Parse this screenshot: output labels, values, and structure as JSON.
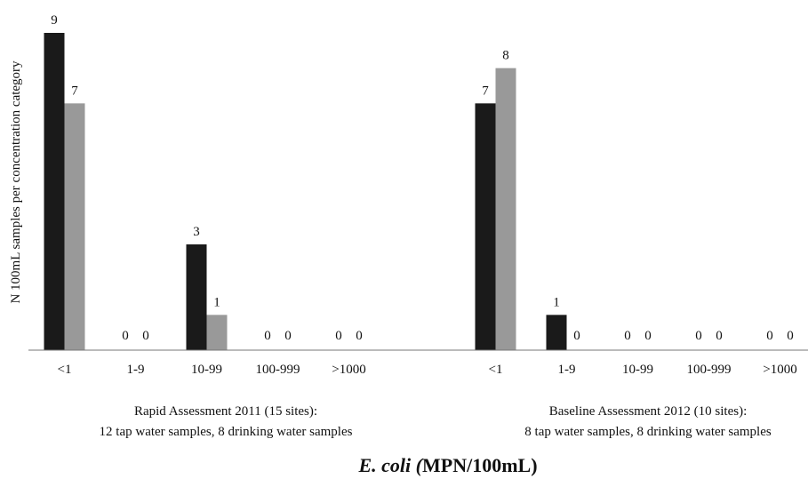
{
  "chart_data": {
    "type": "bar",
    "ylabel": "N 100mL samples per concentration category",
    "xlabel_italic": "E. coli (",
    "xlabel_rest": "MPN/100mL)",
    "ylim": [
      0,
      9
    ],
    "grid": false,
    "series_colors": [
      "#1a1a1a",
      "#999999"
    ],
    "groups": [
      {
        "label_line1": "Rapid Assessment 2011 (15 sites):",
        "label_line2": "12 tap water samples, 8 drinking water samples",
        "categories": [
          "<1",
          "1-9",
          "10-99",
          "100-999",
          ">1000"
        ],
        "series": [
          {
            "values": [
              9,
              0,
              3,
              0,
              0
            ]
          },
          {
            "values": [
              7,
              0,
              1,
              0,
              0
            ]
          }
        ]
      },
      {
        "label_line1": "Baseline Assessment 2012 (10 sites):",
        "label_line2": "8 tap water samples, 8 drinking water samples",
        "categories": [
          "<1",
          "1-9",
          "10-99",
          "100-999",
          ">1000"
        ],
        "series": [
          {
            "values": [
              7,
              1,
              0,
              0,
              0
            ]
          },
          {
            "values": [
              8,
              0,
              0,
              0,
              0
            ]
          }
        ]
      }
    ]
  }
}
